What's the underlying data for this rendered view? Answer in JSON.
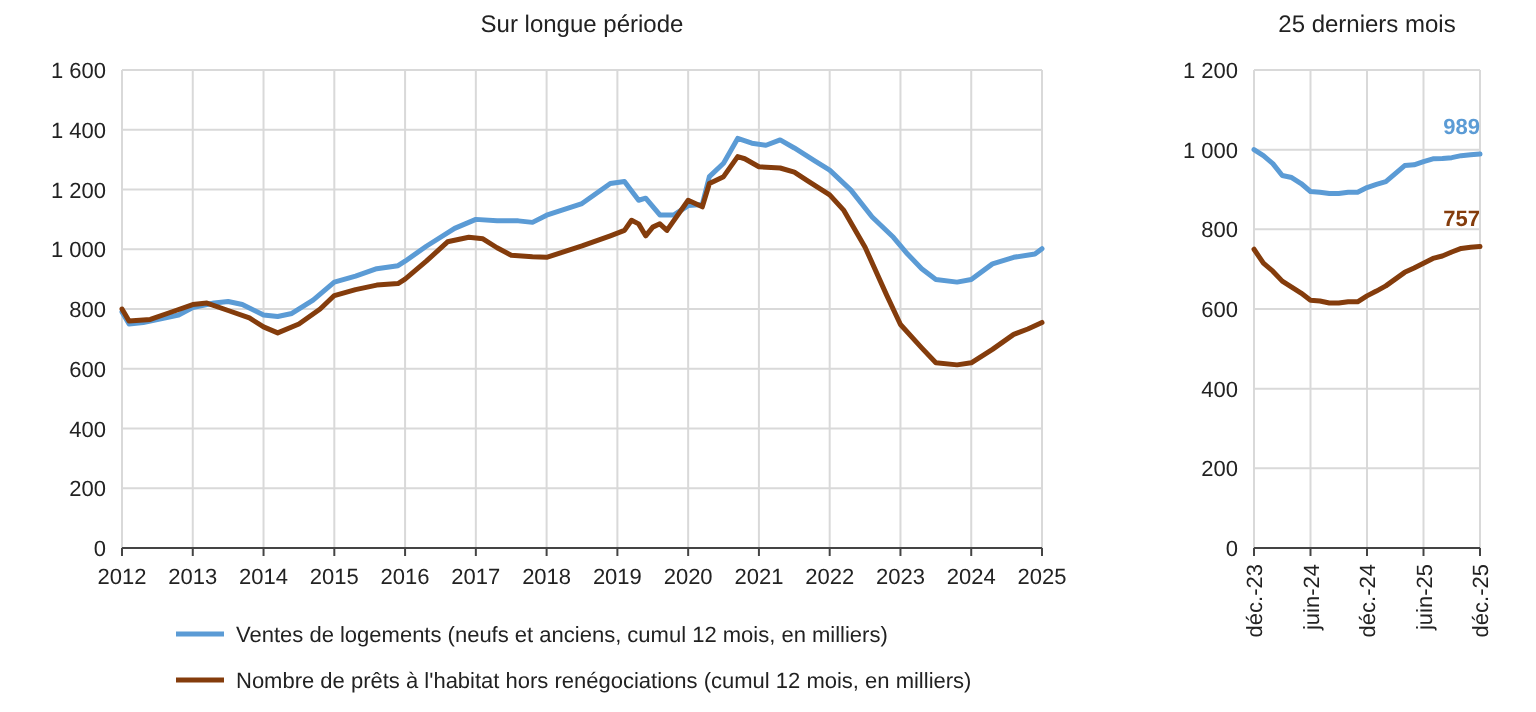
{
  "chart_data": [
    {
      "type": "line",
      "title": "Sur longue période",
      "legend": "bottom",
      "grid": true,
      "xlim": [
        2012,
        2025
      ],
      "xticks": [
        2012,
        2013,
        2014,
        2015,
        2016,
        2017,
        2018,
        2019,
        2020,
        2021,
        2022,
        2023,
        2024,
        2025
      ],
      "ylim": [
        0,
        1600
      ],
      "yticks": [
        0,
        200,
        400,
        600,
        800,
        {
          "value": 1000,
          "label": "1 000"
        },
        {
          "value": 1200,
          "label": "1 200"
        },
        {
          "value": 1400,
          "label": "1 400"
        },
        {
          "value": 1600,
          "label": "1 600"
        }
      ],
      "series": [
        {
          "name": "Ventes de logements (neufs et anciens, cumul 12 mois, en milliers)",
          "color": "#5b9bd5",
          "x": [
            2012,
            2012.1,
            2012.3,
            2012.5,
            2012.8,
            2013,
            2013.3,
            2013.5,
            2013.7,
            2014,
            2014.2,
            2014.4,
            2014.7,
            2015,
            2015.3,
            2015.6,
            2015.9,
            2016,
            2016.3,
            2016.7,
            2017,
            2017.3,
            2017.6,
            2017.8,
            2018,
            2018.5,
            2018.9,
            2019.1,
            2019.3,
            2019.4,
            2019.6,
            2019.8,
            2020,
            2020.2,
            2020.3,
            2020.5,
            2020.7,
            2020.9,
            2021.1,
            2021.3,
            2021.5,
            2021.8,
            2022,
            2022.3,
            2022.6,
            2022.9,
            2023.1,
            2023.3,
            2023.5,
            2023.8,
            2024,
            2024.3,
            2024.6,
            2024.9,
            2025
          ],
          "values": [
            790,
            750,
            755,
            765,
            780,
            805,
            820,
            825,
            815,
            780,
            775,
            785,
            830,
            890,
            910,
            935,
            945,
            960,
            1010,
            1070,
            1100,
            1095,
            1095,
            1090,
            1114,
            1153,
            1220,
            1227,
            1164,
            1171,
            1115,
            1115,
            1146,
            1150,
            1243,
            1288,
            1371,
            1355,
            1348,
            1366,
            1339,
            1294,
            1265,
            1198,
            1108,
            1040,
            984,
            935,
            899,
            890,
            899,
            951,
            973,
            984,
            1002
          ]
        },
        {
          "name": "Nombre de prêts à l'habitat hors renégociations (cumul 12 mois, en milliers)",
          "color": "#843c0c",
          "x": [
            2012,
            2012.1,
            2012.4,
            2012.7,
            2013,
            2013.2,
            2013.5,
            2013.8,
            2014,
            2014.2,
            2014.5,
            2014.8,
            2015,
            2015.3,
            2015.6,
            2015.9,
            2016,
            2016.3,
            2016.6,
            2016.9,
            2017.1,
            2017.3,
            2017.5,
            2017.8,
            2018,
            2018.5,
            2018.9,
            2019.1,
            2019.2,
            2019.3,
            2019.4,
            2019.5,
            2019.6,
            2019.7,
            2020,
            2020.2,
            2020.3,
            2020.5,
            2020.7,
            2020.8,
            2021,
            2021.3,
            2021.5,
            2021.7,
            2022,
            2022.2,
            2022.5,
            2022.8,
            2023,
            2023.3,
            2023.5,
            2023.8,
            2024,
            2024.3,
            2024.6,
            2024.8,
            2025
          ],
          "values": [
            800,
            760,
            765,
            790,
            815,
            820,
            795,
            770,
            740,
            720,
            750,
            800,
            845,
            865,
            880,
            885,
            900,
            960,
            1025,
            1040,
            1035,
            1005,
            980,
            975,
            973,
            1011,
            1045,
            1063,
            1097,
            1085,
            1045,
            1074,
            1085,
            1063,
            1164,
            1142,
            1220,
            1243,
            1310,
            1303,
            1276,
            1272,
            1258,
            1227,
            1182,
            1130,
            1007,
            849,
            748,
            670,
            620,
            613,
            620,
            665,
            715,
            733,
            755
          ]
        }
      ]
    },
    {
      "type": "line",
      "title": "25 derniers mois",
      "grid": true,
      "categories": [
        "déc.-23",
        null,
        null,
        null,
        null,
        null,
        "juin-24",
        null,
        null,
        null,
        null,
        null,
        "déc.-24",
        null,
        null,
        null,
        null,
        null,
        "juin-25",
        null,
        null,
        null,
        null,
        null,
        "déc.-25"
      ],
      "ylim": [
        0,
        1200
      ],
      "yticks": [
        0,
        200,
        400,
        600,
        800,
        {
          "value": 1000,
          "label": "1 000"
        },
        {
          "value": 1200,
          "label": "1 200"
        }
      ],
      "series": [
        {
          "color": "#5b9bd5",
          "values": [
            1000,
            985,
            965,
            935,
            930,
            915,
            895,
            893,
            890,
            890,
            893,
            893,
            905,
            913,
            920,
            940,
            960,
            962,
            970,
            977,
            978,
            980,
            985,
            987,
            989
          ],
          "value_labels": [
            null,
            null,
            null,
            null,
            null,
            null,
            null,
            null,
            null,
            null,
            null,
            null,
            null,
            null,
            null,
            null,
            null,
            null,
            null,
            null,
            null,
            null,
            null,
            null,
            "989"
          ]
        },
        {
          "color": "#843c0c",
          "values": [
            750,
            715,
            695,
            670,
            655,
            640,
            622,
            620,
            615,
            615,
            618,
            618,
            633,
            645,
            658,
            675,
            692,
            703,
            715,
            727,
            733,
            743,
            752,
            755,
            757
          ],
          "value_labels": [
            null,
            null,
            null,
            null,
            null,
            null,
            null,
            null,
            null,
            null,
            null,
            null,
            null,
            null,
            null,
            null,
            null,
            null,
            null,
            null,
            null,
            null,
            null,
            null,
            "757"
          ]
        }
      ]
    }
  ]
}
